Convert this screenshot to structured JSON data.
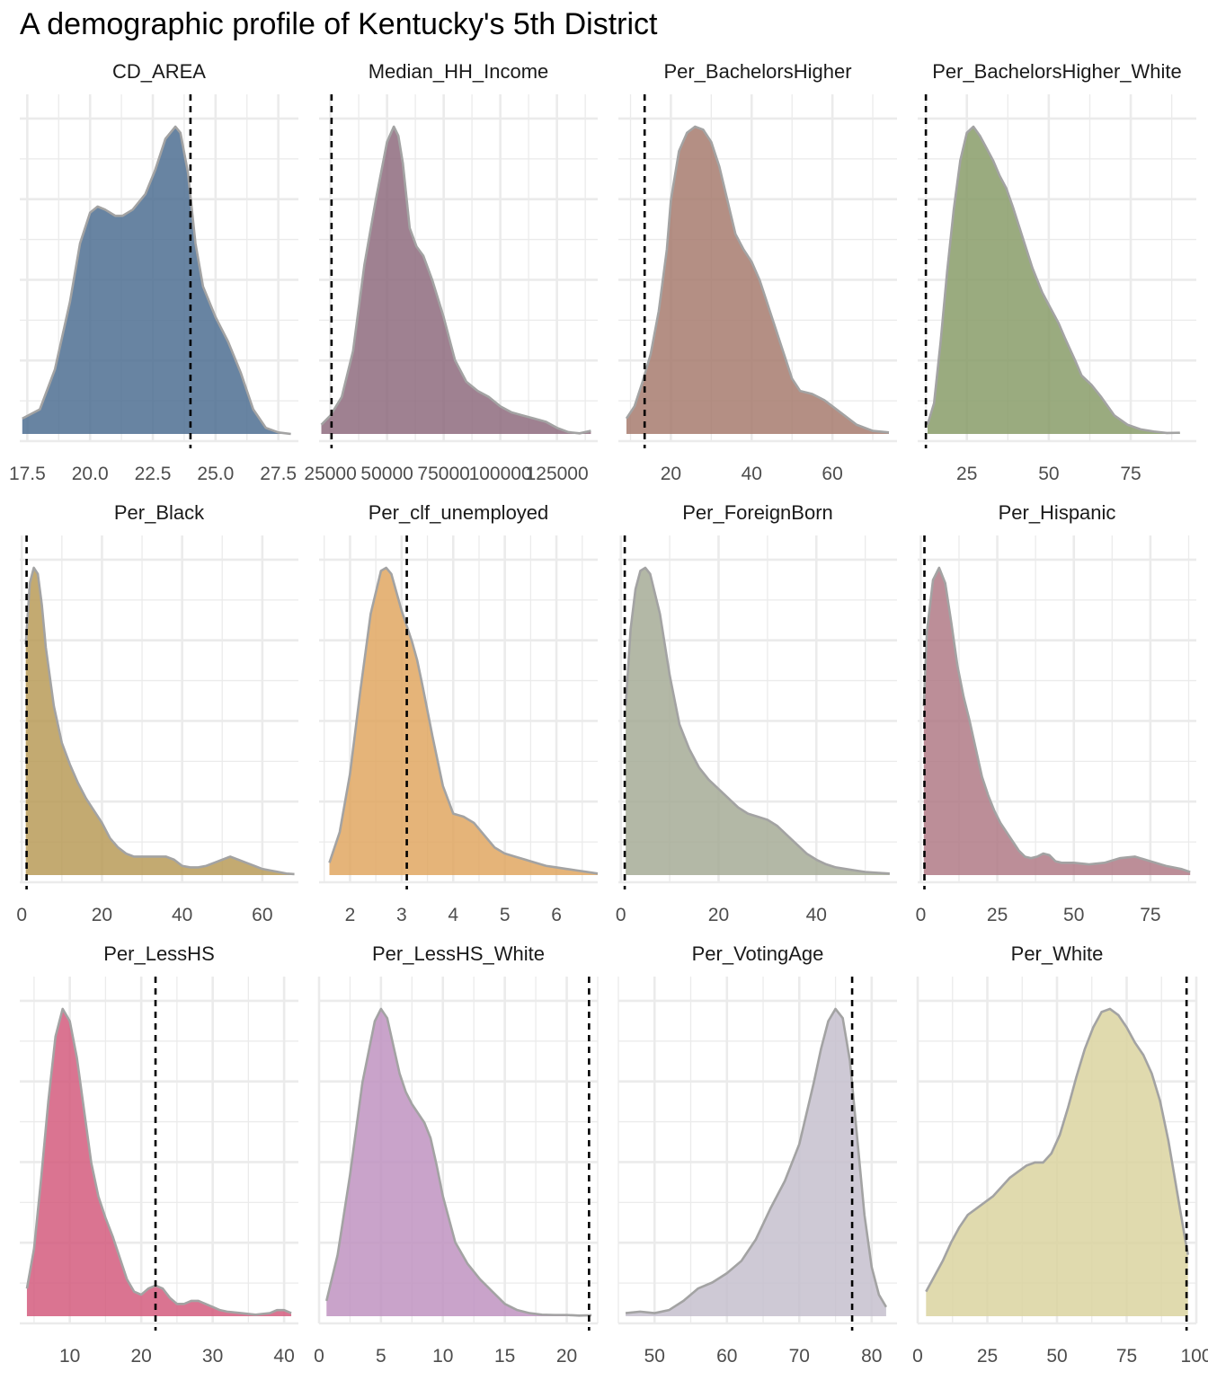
{
  "title": "A demographic profile of Kentucky's 5th District",
  "chart_data": [
    {
      "type": "area",
      "subtype": "density",
      "facet": "CD_AREA",
      "color": "#4e6f92",
      "xlim": [
        17.2,
        28.3
      ],
      "xticks": [
        17.5,
        20.0,
        22.5,
        25.0,
        27.5
      ],
      "tick_labels": [
        "17.5",
        "20.0",
        "22.5",
        "25.0",
        "27.5"
      ],
      "reference_line": 24.0,
      "x": [
        17.3,
        18.0,
        18.6,
        19.2,
        19.6,
        20.0,
        20.3,
        20.6,
        21.0,
        21.3,
        21.7,
        22.2,
        22.6,
        23.0,
        23.4,
        23.6,
        23.9,
        24.2,
        24.5,
        25.0,
        25.5,
        26.0,
        26.5,
        27.0,
        27.5,
        28.0
      ],
      "y": [
        0.05,
        0.08,
        0.21,
        0.43,
        0.62,
        0.72,
        0.74,
        0.73,
        0.71,
        0.71,
        0.73,
        0.78,
        0.86,
        0.96,
        1.0,
        0.98,
        0.85,
        0.62,
        0.48,
        0.38,
        0.3,
        0.2,
        0.08,
        0.02,
        0.005,
        0.0
      ]
    },
    {
      "type": "area",
      "subtype": "density",
      "facet": "Median_HH_Income",
      "color": "#8e6b7e",
      "xlim": [
        20000,
        143000
      ],
      "xticks": [
        25000,
        50000,
        75000,
        100000,
        125000
      ],
      "tick_labels": [
        "25000",
        "50000",
        "75000",
        "100000",
        "125000"
      ],
      "reference_line": 25500,
      "x": [
        21000,
        25000,
        30000,
        35000,
        40000,
        45000,
        50000,
        53000,
        55000,
        57000,
        60000,
        63000,
        66000,
        70000,
        75000,
        80000,
        85000,
        90000,
        95000,
        100000,
        105000,
        110000,
        115000,
        120000,
        125000,
        130000,
        135000,
        140000
      ],
      "y": [
        0.03,
        0.06,
        0.12,
        0.27,
        0.55,
        0.76,
        0.95,
        1.0,
        0.97,
        0.88,
        0.67,
        0.61,
        0.58,
        0.5,
        0.38,
        0.24,
        0.17,
        0.14,
        0.12,
        0.09,
        0.07,
        0.06,
        0.05,
        0.04,
        0.02,
        0.006,
        0.002,
        0.01
      ]
    },
    {
      "type": "area",
      "subtype": "density",
      "facet": "Per_BachelorsHigher",
      "color": "#a77b6f",
      "xlim": [
        7,
        76
      ],
      "xticks": [
        20,
        40,
        60
      ],
      "tick_labels": [
        "20",
        "40",
        "60"
      ],
      "reference_line": 13.5,
      "x": [
        9,
        11,
        13,
        15,
        17,
        19,
        20,
        22,
        24,
        26,
        28,
        30,
        32,
        34,
        36,
        38,
        40,
        42,
        44,
        46,
        48,
        50,
        52,
        55,
        58,
        62,
        66,
        70,
        74
      ],
      "y": [
        0.05,
        0.09,
        0.17,
        0.26,
        0.4,
        0.6,
        0.76,
        0.92,
        0.98,
        1.0,
        0.99,
        0.95,
        0.87,
        0.76,
        0.65,
        0.6,
        0.56,
        0.5,
        0.42,
        0.34,
        0.26,
        0.18,
        0.14,
        0.13,
        0.11,
        0.07,
        0.03,
        0.01,
        0.005
      ]
    },
    {
      "type": "area",
      "subtype": "density",
      "facet": "Per_BachelorsHigher_White",
      "color": "#889c68",
      "xlim": [
        10,
        95
      ],
      "xticks": [
        25,
        50,
        75
      ],
      "tick_labels": [
        "25",
        "50",
        "75"
      ],
      "reference_line": 12.5,
      "x": [
        13,
        15,
        17,
        19,
        21,
        23,
        25,
        27,
        29,
        31,
        33,
        35,
        37,
        39,
        42,
        45,
        48,
        50,
        53,
        55,
        58,
        60,
        63,
        66,
        70,
        74,
        78,
        82,
        86,
        90
      ],
      "y": [
        0.03,
        0.1,
        0.3,
        0.53,
        0.73,
        0.89,
        0.98,
        1.0,
        0.97,
        0.93,
        0.89,
        0.84,
        0.8,
        0.74,
        0.64,
        0.54,
        0.46,
        0.42,
        0.36,
        0.31,
        0.24,
        0.19,
        0.16,
        0.12,
        0.06,
        0.03,
        0.015,
        0.008,
        0.003,
        0.004
      ]
    },
    {
      "type": "area",
      "subtype": "density",
      "facet": "Per_Black",
      "color": "#b89b58",
      "xlim": [
        -0.5,
        69
      ],
      "xticks": [
        0,
        20,
        40,
        60
      ],
      "tick_labels": [
        "0",
        "20",
        "40",
        "60"
      ],
      "reference_line": 1.2,
      "x": [
        1,
        2,
        3,
        4,
        5,
        6,
        8,
        10,
        12,
        14,
        16,
        18,
        20,
        22,
        24,
        26,
        28,
        30,
        32,
        34,
        36,
        38,
        40,
        42,
        44,
        46,
        48,
        50,
        52,
        54,
        56,
        58,
        60,
        62,
        64,
        66,
        68
      ],
      "y": [
        0.75,
        0.95,
        1.0,
        0.98,
        0.88,
        0.74,
        0.55,
        0.43,
        0.36,
        0.3,
        0.25,
        0.21,
        0.17,
        0.12,
        0.09,
        0.07,
        0.06,
        0.06,
        0.06,
        0.06,
        0.06,
        0.05,
        0.03,
        0.025,
        0.025,
        0.03,
        0.04,
        0.05,
        0.06,
        0.05,
        0.04,
        0.03,
        0.02,
        0.015,
        0.01,
        0.005,
        0.003
      ]
    },
    {
      "type": "area",
      "subtype": "density",
      "facet": "Per_clf_unemployed",
      "color": "#e0a762",
      "xlim": [
        1.4,
        6.8
      ],
      "xticks": [
        2,
        3,
        4,
        5,
        6
      ],
      "tick_labels": [
        "2",
        "3",
        "4",
        "5",
        "6"
      ],
      "reference_line": 3.1,
      "x": [
        1.6,
        1.8,
        2.0,
        2.2,
        2.4,
        2.6,
        2.7,
        2.8,
        2.9,
        3.0,
        3.1,
        3.2,
        3.3,
        3.4,
        3.6,
        3.8,
        4.0,
        4.2,
        4.4,
        4.6,
        4.8,
        5.0,
        5.2,
        5.4,
        5.6,
        5.8,
        6.0,
        6.2,
        6.4,
        6.6,
        6.8
      ],
      "y": [
        0.04,
        0.14,
        0.33,
        0.6,
        0.85,
        0.99,
        1.0,
        0.98,
        0.92,
        0.86,
        0.81,
        0.76,
        0.7,
        0.62,
        0.45,
        0.29,
        0.2,
        0.19,
        0.17,
        0.13,
        0.09,
        0.07,
        0.06,
        0.05,
        0.04,
        0.03,
        0.025,
        0.02,
        0.015,
        0.01,
        0.005
      ]
    },
    {
      "type": "area",
      "subtype": "density",
      "facet": "Per_ForeignBorn",
      "color": "#a6ab96",
      "xlim": [
        -0.5,
        56.5
      ],
      "xticks": [
        0,
        20,
        40
      ],
      "tick_labels": [
        "0",
        "20",
        "40"
      ],
      "reference_line": 0.8,
      "x": [
        1,
        2,
        3,
        4,
        5,
        6,
        8,
        10,
        12,
        14,
        16,
        18,
        20,
        22,
        24,
        26,
        28,
        30,
        32,
        34,
        36,
        38,
        40,
        42,
        44,
        46,
        48,
        50,
        52,
        55
      ],
      "y": [
        0.55,
        0.8,
        0.93,
        0.99,
        1.0,
        0.98,
        0.85,
        0.65,
        0.49,
        0.41,
        0.35,
        0.31,
        0.28,
        0.25,
        0.22,
        0.2,
        0.19,
        0.18,
        0.16,
        0.13,
        0.1,
        0.07,
        0.05,
        0.035,
        0.025,
        0.02,
        0.015,
        0.01,
        0.008,
        0.005
      ]
    },
    {
      "type": "area",
      "subtype": "density",
      "facet": "Per_Hispanic",
      "color": "#b07a86",
      "xlim": [
        -1,
        90
      ],
      "xticks": [
        0,
        25,
        50,
        75
      ],
      "tick_labels": [
        "0",
        "25",
        "50",
        "75"
      ],
      "reference_line": 1.2,
      "x": [
        1,
        2,
        4,
        6,
        8,
        10,
        12,
        14,
        16,
        18,
        20,
        22,
        24,
        26,
        28,
        30,
        32,
        34,
        36,
        38,
        40,
        42,
        44,
        46,
        50,
        55,
        60,
        65,
        70,
        75,
        80,
        85,
        88
      ],
      "y": [
        0.55,
        0.79,
        0.96,
        1.0,
        0.95,
        0.82,
        0.68,
        0.58,
        0.5,
        0.41,
        0.32,
        0.26,
        0.21,
        0.17,
        0.14,
        0.11,
        0.08,
        0.06,
        0.055,
        0.06,
        0.07,
        0.065,
        0.045,
        0.04,
        0.04,
        0.035,
        0.04,
        0.055,
        0.06,
        0.045,
        0.03,
        0.02,
        0.01
      ]
    },
    {
      "type": "area",
      "subtype": "density",
      "facet": "Per_LessHS",
      "color": "#d45c7e",
      "xlim": [
        3,
        42
      ],
      "xticks": [
        10,
        20,
        30,
        40
      ],
      "tick_labels": [
        "10",
        "20",
        "30",
        "40"
      ],
      "reference_line": 22.0,
      "x": [
        4,
        5,
        6,
        7,
        8,
        9,
        10,
        11,
        12,
        13,
        14,
        15,
        16,
        17,
        18,
        19,
        20,
        21,
        22,
        23,
        24,
        25,
        26,
        27,
        28,
        29,
        30,
        31,
        32,
        34,
        36,
        38,
        39,
        40,
        41
      ],
      "y": [
        0.09,
        0.22,
        0.45,
        0.7,
        0.91,
        1.0,
        0.96,
        0.84,
        0.67,
        0.5,
        0.39,
        0.32,
        0.26,
        0.19,
        0.12,
        0.08,
        0.07,
        0.09,
        0.1,
        0.09,
        0.06,
        0.04,
        0.04,
        0.05,
        0.05,
        0.04,
        0.03,
        0.02,
        0.015,
        0.01,
        0.005,
        0.01,
        0.02,
        0.02,
        0.01
      ]
    },
    {
      "type": "area",
      "subtype": "density",
      "facet": "Per_LessHS_White",
      "color": "#bf93c1",
      "xlim": [
        0,
        22.5
      ],
      "xticks": [
        0,
        5,
        10,
        15,
        20
      ],
      "tick_labels": [
        "0",
        "5",
        "10",
        "15",
        "20"
      ],
      "reference_line": 21.8,
      "x": [
        0.6,
        1.5,
        2.5,
        3.5,
        4.5,
        5.0,
        5.5,
        6.0,
        6.5,
        7.0,
        7.5,
        8.0,
        8.5,
        9.0,
        9.5,
        10,
        11,
        12,
        13,
        14,
        15,
        16,
        17,
        18,
        19,
        20,
        21,
        22
      ],
      "y": [
        0.05,
        0.2,
        0.46,
        0.76,
        0.96,
        1.0,
        0.97,
        0.88,
        0.79,
        0.73,
        0.69,
        0.66,
        0.63,
        0.58,
        0.49,
        0.39,
        0.24,
        0.17,
        0.12,
        0.08,
        0.04,
        0.02,
        0.01,
        0.005,
        0.004,
        0.004,
        0.002,
        0.003
      ]
    },
    {
      "type": "area",
      "subtype": "density",
      "facet": "Per_VotingAge",
      "color": "#c6c0ce",
      "xlim": [
        45,
        83.5
      ],
      "xticks": [
        50,
        60,
        70,
        80
      ],
      "tick_labels": [
        "50",
        "60",
        "70",
        "80"
      ],
      "reference_line": 77.3,
      "x": [
        46,
        48,
        50,
        52,
        54,
        56,
        58,
        60,
        62,
        64,
        66,
        68,
        70,
        71,
        72,
        73,
        74,
        75,
        76,
        77,
        78,
        79,
        80,
        81,
        82
      ],
      "y": [
        0.01,
        0.015,
        0.01,
        0.02,
        0.05,
        0.09,
        0.11,
        0.14,
        0.18,
        0.25,
        0.35,
        0.44,
        0.56,
        0.66,
        0.76,
        0.87,
        0.96,
        1.0,
        0.97,
        0.83,
        0.58,
        0.33,
        0.16,
        0.07,
        0.03
      ]
    },
    {
      "type": "area",
      "subtype": "density",
      "facet": "Per_White",
      "color": "#dad4a0",
      "xlim": [
        0,
        100
      ],
      "xticks": [
        0,
        25,
        50,
        75,
        100
      ],
      "tick_labels": [
        "0",
        "25",
        "50",
        "75",
        "100"
      ],
      "reference_line": 96.5,
      "x": [
        3,
        6,
        9,
        12,
        15,
        18,
        21,
        24,
        27,
        30,
        33,
        36,
        39,
        42,
        45,
        48,
        51,
        54,
        57,
        60,
        63,
        66,
        69,
        72,
        75,
        78,
        81,
        84,
        87,
        90,
        93,
        96,
        97
      ],
      "y": [
        0.08,
        0.13,
        0.18,
        0.24,
        0.29,
        0.33,
        0.35,
        0.37,
        0.39,
        0.42,
        0.45,
        0.47,
        0.49,
        0.5,
        0.5,
        0.53,
        0.59,
        0.68,
        0.78,
        0.87,
        0.94,
        0.99,
        1.0,
        0.98,
        0.94,
        0.89,
        0.85,
        0.79,
        0.7,
        0.57,
        0.41,
        0.25,
        0.2
      ]
    }
  ]
}
